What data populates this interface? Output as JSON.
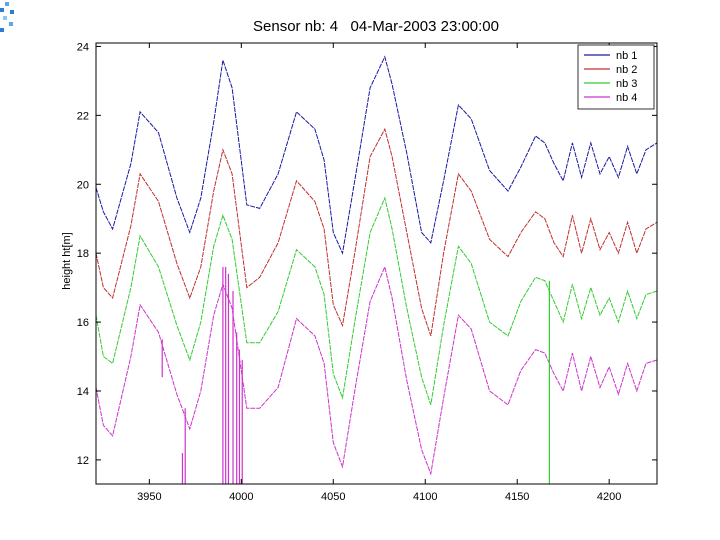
{
  "chart_data": {
    "type": "line",
    "title": "Sensor nb: 4   04-Mar-2003 23:00:00",
    "xlabel": "",
    "ylabel": "height ht[m]",
    "xlim": [
      3921,
      4226
    ],
    "ylim": [
      11.3,
      24.1
    ],
    "xticks": [
      3950,
      4000,
      4050,
      4100,
      4150,
      4200
    ],
    "yticks": [
      12,
      14,
      16,
      18,
      20,
      22,
      24
    ],
    "grid": false,
    "legend_position": "top-right",
    "x": [
      3921,
      3925,
      3930,
      3940,
      3945,
      3955,
      3965,
      3972,
      3978,
      3985,
      3990,
      3995,
      4003,
      4010,
      4020,
      4030,
      4040,
      4045,
      4050,
      4055,
      4062,
      4070,
      4078,
      4082,
      4090,
      4098,
      4103,
      4110,
      4118,
      4125,
      4135,
      4145,
      4152,
      4160,
      4165,
      4170,
      4175,
      4180,
      4185,
      4190,
      4195,
      4200,
      4205,
      4210,
      4215,
      4220,
      4226
    ],
    "series": [
      {
        "name": "nb 1",
        "color": "#1a1aa0",
        "values": [
          19.9,
          19.2,
          18.7,
          20.6,
          22.1,
          21.5,
          19.6,
          18.6,
          19.6,
          21.8,
          23.6,
          22.8,
          19.4,
          19.3,
          20.3,
          22.1,
          21.6,
          20.7,
          18.6,
          18.0,
          20.2,
          22.8,
          23.7,
          22.9,
          20.9,
          18.6,
          18.3,
          20.1,
          22.3,
          21.9,
          20.4,
          19.8,
          20.5,
          21.4,
          21.2,
          20.6,
          20.1,
          21.2,
          20.2,
          21.2,
          20.3,
          20.8,
          20.2,
          21.1,
          20.3,
          21.0,
          21.2
        ]
      },
      {
        "name": "nb 2",
        "color": "#c03030",
        "values": [
          18.0,
          17.0,
          16.7,
          18.8,
          20.3,
          19.5,
          17.7,
          16.7,
          17.6,
          19.8,
          21.0,
          20.3,
          17.0,
          17.3,
          18.3,
          20.1,
          19.5,
          18.7,
          16.5,
          15.9,
          18.1,
          20.8,
          21.6,
          20.8,
          18.6,
          16.4,
          15.6,
          18.0,
          20.3,
          19.8,
          18.4,
          17.9,
          18.6,
          19.2,
          19.0,
          18.3,
          17.9,
          19.1,
          18.0,
          19.0,
          18.1,
          18.6,
          18.0,
          18.9,
          18.0,
          18.7,
          18.9
        ]
      },
      {
        "name": "nb 3",
        "color": "#33cc33",
        "values": [
          16.2,
          15.0,
          14.8,
          17.0,
          18.5,
          17.6,
          15.9,
          14.9,
          16.0,
          18.2,
          19.1,
          18.4,
          15.4,
          15.4,
          16.3,
          18.1,
          17.6,
          16.8,
          14.5,
          13.8,
          16.1,
          18.6,
          19.6,
          18.7,
          16.4,
          14.4,
          13.6,
          15.9,
          18.2,
          17.7,
          16.0,
          15.6,
          16.6,
          17.3,
          17.2,
          16.6,
          16.0,
          17.1,
          16.1,
          17.0,
          16.2,
          16.7,
          16.0,
          16.9,
          16.1,
          16.8,
          16.9
        ]
      },
      {
        "name": "nb 4",
        "color": "#cc33cc",
        "values": [
          14.1,
          13.0,
          12.7,
          15.0,
          16.5,
          15.7,
          13.9,
          12.9,
          14.0,
          16.2,
          17.1,
          16.4,
          13.5,
          13.5,
          14.1,
          16.1,
          15.6,
          14.8,
          12.5,
          11.8,
          14.1,
          16.6,
          17.6,
          16.7,
          14.3,
          12.3,
          11.6,
          13.8,
          16.2,
          15.8,
          14.0,
          13.6,
          14.6,
          15.2,
          15.1,
          14.5,
          14.0,
          15.1,
          14.0,
          15.0,
          14.1,
          14.7,
          13.9,
          14.8,
          14.0,
          14.8,
          14.9
        ]
      }
    ],
    "spikes": [
      {
        "series": "nb 4",
        "x": 3957,
        "from": 15.5,
        "to": 14.4
      },
      {
        "series": "nb 4",
        "x": 3968,
        "from": 12.2,
        "to": 11.3
      },
      {
        "series": "nb 4",
        "x": 3969.5,
        "from": 13.5,
        "to": 11.3
      },
      {
        "series": "nb 4",
        "x": 3990,
        "from": 17.6,
        "to": 11.3
      },
      {
        "series": "nb 4",
        "x": 3991.5,
        "from": 17.6,
        "to": 11.3
      },
      {
        "series": "nb 4",
        "x": 3993,
        "from": 17.4,
        "to": 11.3
      },
      {
        "series": "nb 4",
        "x": 3995.5,
        "from": 16.9,
        "to": 11.3
      },
      {
        "series": "nb 4",
        "x": 3997.5,
        "from": 15.7,
        "to": 11.3
      },
      {
        "series": "nb 4",
        "x": 3999,
        "from": 15.2,
        "to": 11.3
      },
      {
        "series": "nb 4",
        "x": 4000.5,
        "from": 14.9,
        "to": 11.3
      },
      {
        "series": "nb 3",
        "x": 4167.5,
        "from": 17.2,
        "to": 11.3
      }
    ]
  },
  "colors": {
    "corner_accent": "#2a7fd4"
  }
}
